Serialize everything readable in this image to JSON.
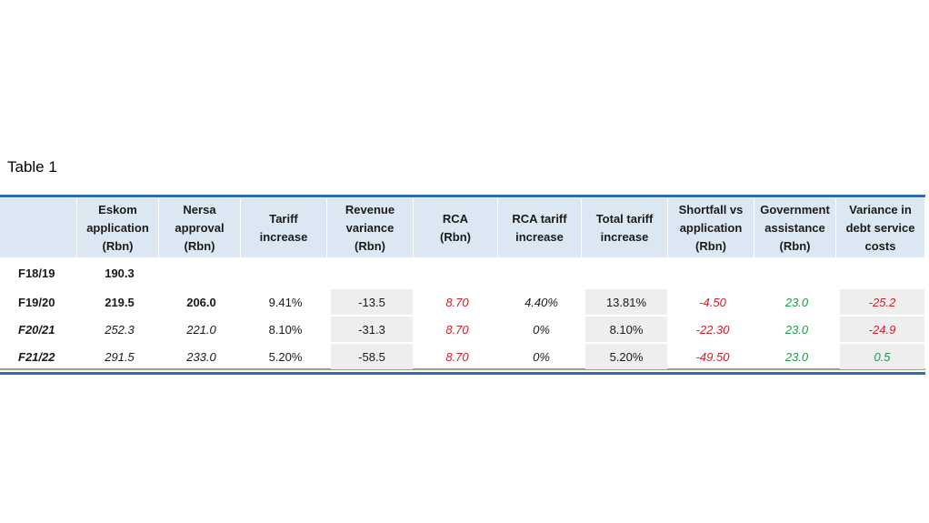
{
  "caption": "Table 1",
  "table": {
    "header": [
      [
        "Eskom",
        "application",
        "(Rbn)"
      ],
      [
        "Nersa",
        "approval",
        "(Rbn)"
      ],
      [
        "Tariff",
        "increase"
      ],
      [
        "Revenue",
        "variance",
        "(Rbn)"
      ],
      [
        "RCA",
        "(Rbn)"
      ],
      [
        "RCA tariff",
        "increase"
      ],
      [
        "Total tariff",
        "increase"
      ],
      [
        "Shortfall vs",
        "application",
        "(Rbn)"
      ],
      [
        "Government",
        "assistance",
        "(Rbn)"
      ],
      [
        "Variance in",
        "debt service",
        "costs"
      ]
    ],
    "rows": [
      [
        "F18/19",
        "190.3"
      ],
      [
        "F19/20",
        "219.5",
        "206.0",
        "9.41%",
        "-13.5",
        "8.70",
        "4.40%",
        "13.81%",
        "-4.50",
        "23.0",
        "-25.2"
      ],
      [
        "F20/21",
        "252.3",
        "221.0",
        "8.10%",
        "-31.3",
        "8.70",
        "0%",
        "8.10%",
        "-22.30",
        "23.0",
        "-24.9"
      ],
      [
        "F21/22",
        "291.5",
        "233.0",
        "5.20%",
        "-58.5",
        "8.70",
        "0%",
        "5.20%",
        "-49.50",
        "23.0",
        "0.5"
      ]
    ]
  }
}
